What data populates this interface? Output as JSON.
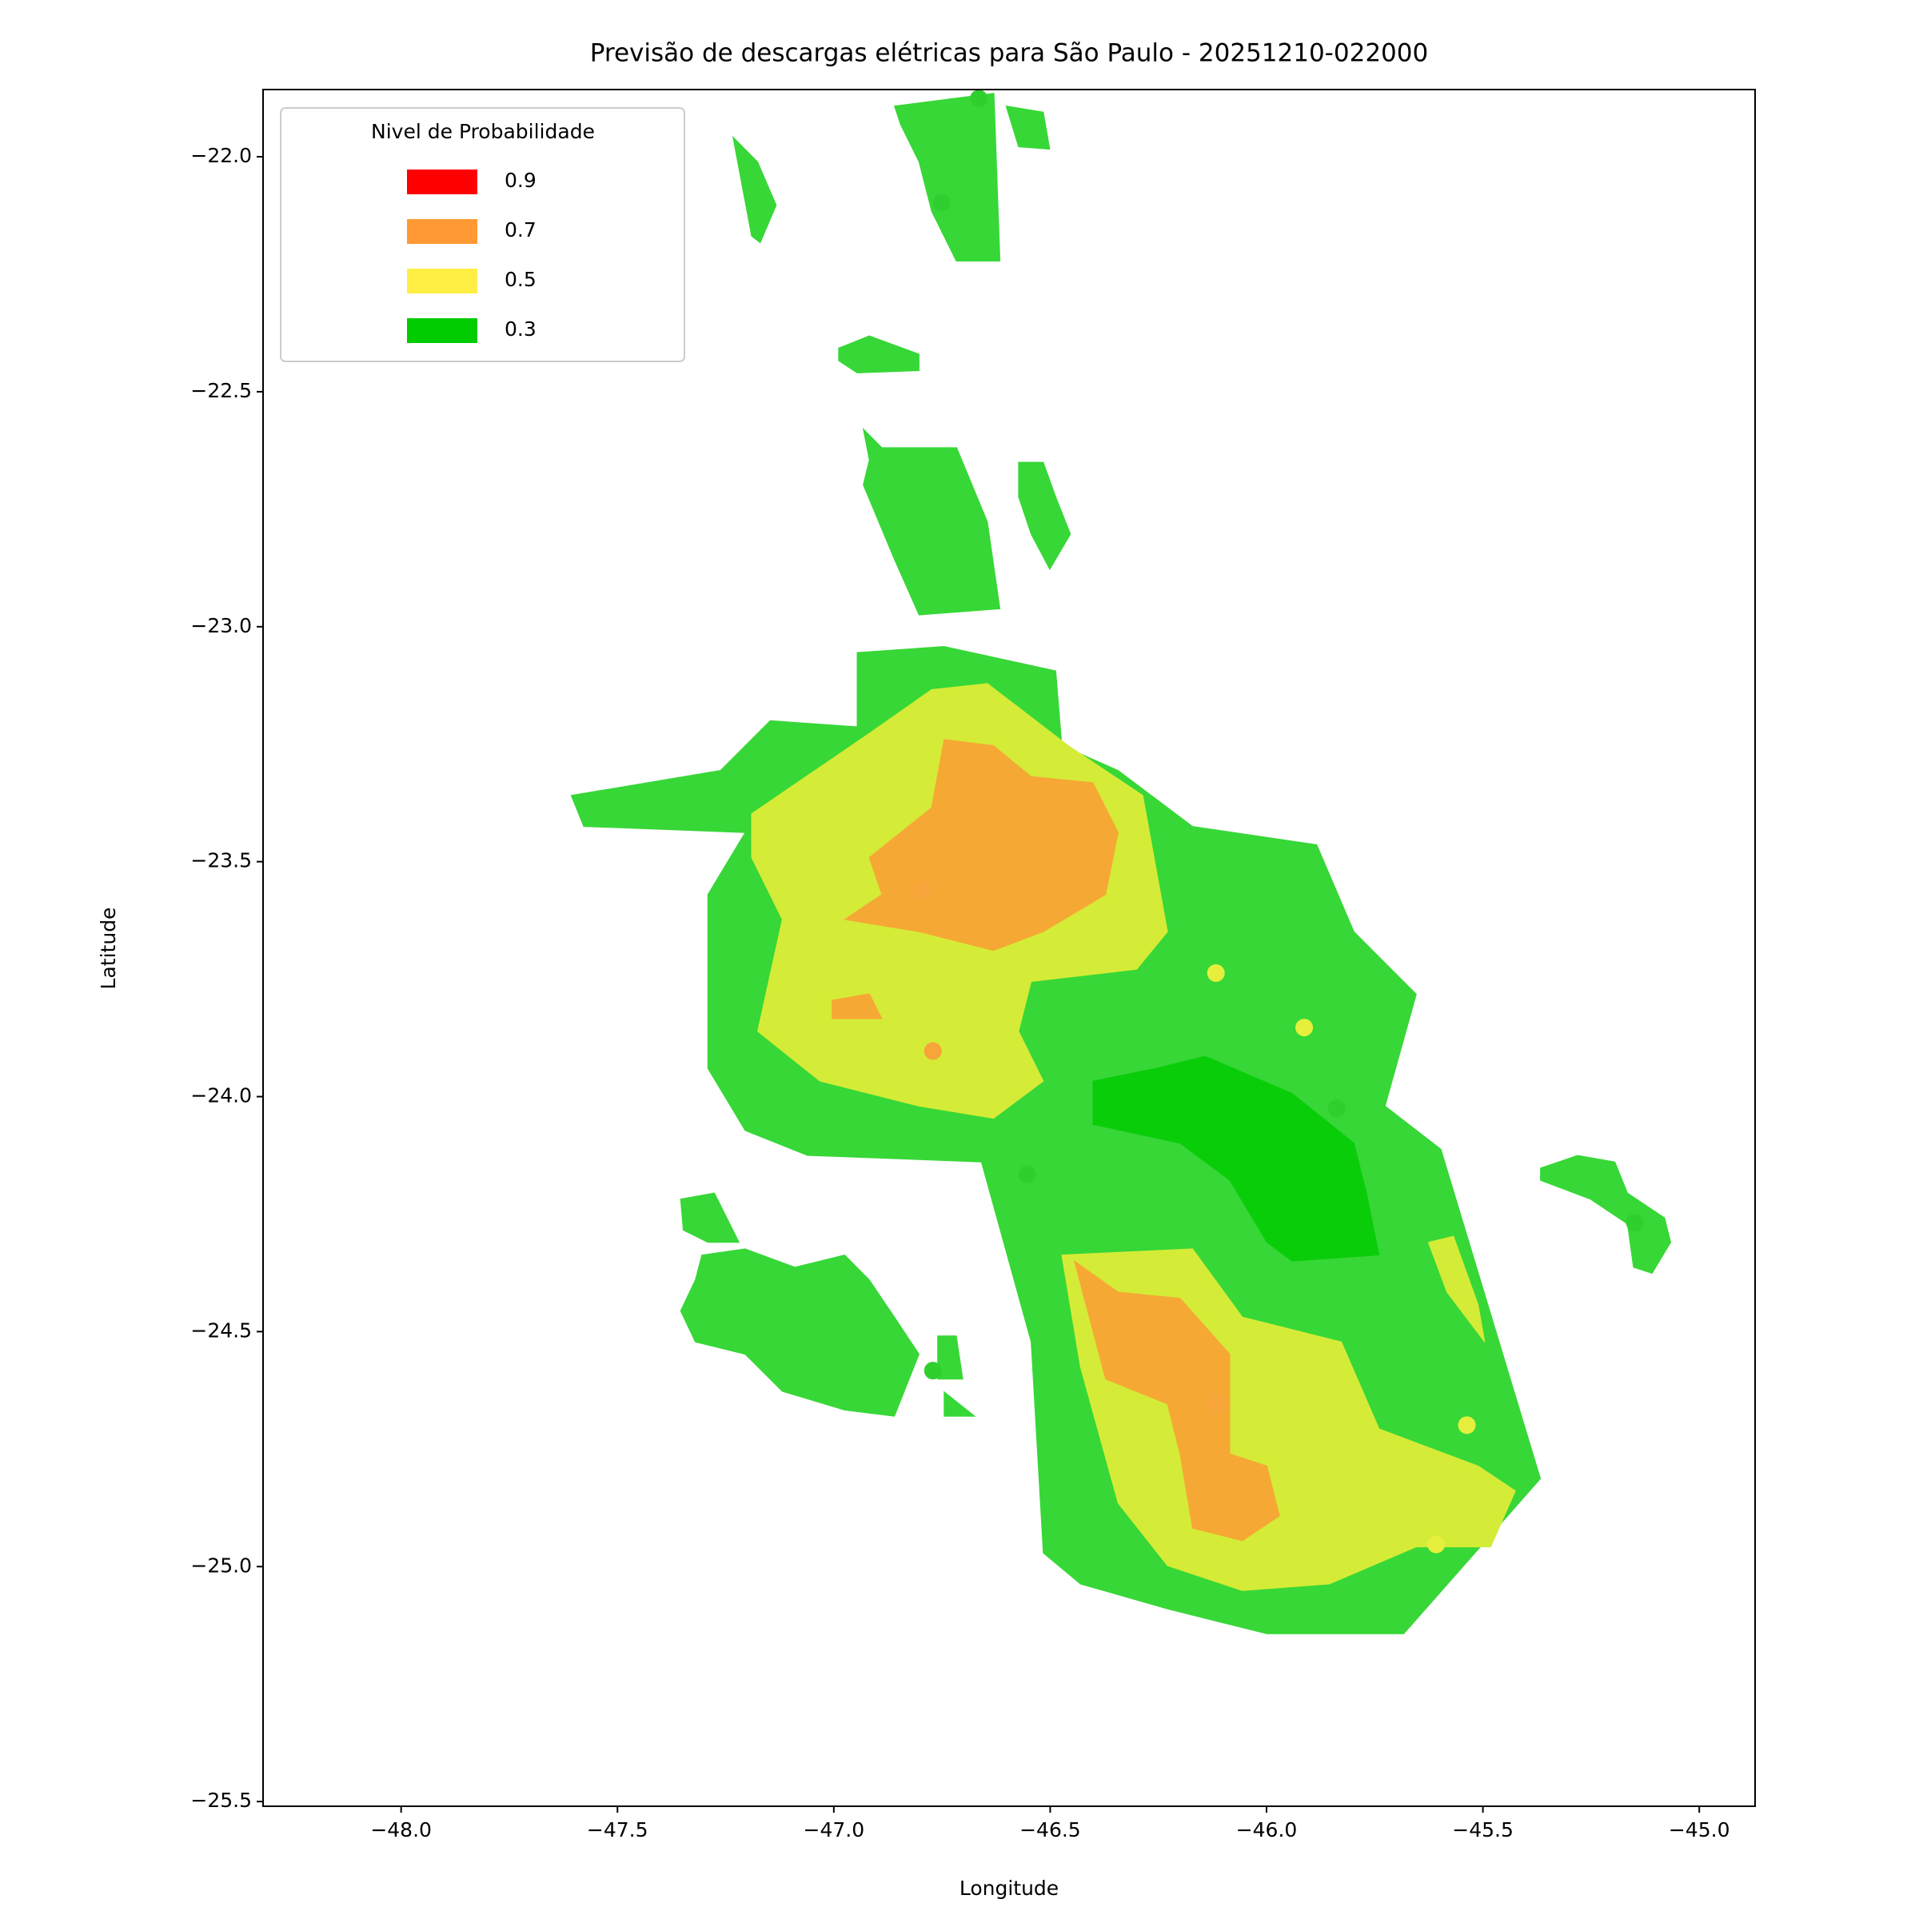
{
  "chart_data": {
    "type": "contour",
    "title": "Previsão de descargas elétricas para São Paulo - 20251210-022000",
    "xlabel": "Longitude",
    "ylabel": "Latitude",
    "xlim": [
      -48.319,
      -44.871
    ],
    "ylim": [
      -25.51,
      -21.857
    ],
    "xticks": [
      {
        "value": -48,
        "label": "−48.0"
      },
      {
        "value": -47.5,
        "label": "−47.5"
      },
      {
        "value": -47,
        "label": "−47.0"
      },
      {
        "value": -46.5,
        "label": "−46.5"
      },
      {
        "value": -46,
        "label": "−46.0"
      },
      {
        "value": -45.5,
        "label": "−45.5"
      },
      {
        "value": -45,
        "label": "−45.0"
      }
    ],
    "yticks": [
      {
        "value": -22,
        "label": "−22.0"
      },
      {
        "value": -22.5,
        "label": "−22.5"
      },
      {
        "value": -23,
        "label": "−23.0"
      },
      {
        "value": -23.5,
        "label": "−23.5"
      },
      {
        "value": -24,
        "label": "−24.0"
      },
      {
        "value": -24.5,
        "label": "−24.5"
      },
      {
        "value": -25,
        "label": "−25.0"
      },
      {
        "value": -25.5,
        "label": "−25.5"
      }
    ],
    "legend": {
      "title": "Nivel de Probabilidade",
      "loc": "upper left",
      "levels": [
        0.9,
        0.7,
        0.5,
        0.3
      ],
      "colors": [
        "#ff0000",
        "#ff9933",
        "#ffee44",
        "#00cc00"
      ]
    },
    "regions": [
      {
        "level": 0.3,
        "color": "#37d737",
        "points": [
          [
            -47.607,
            -23.359
          ],
          [
            -47.262,
            -23.306
          ],
          [
            -47.147,
            -23.2
          ],
          [
            -46.946,
            -23.213
          ],
          [
            -46.946,
            -23.055
          ],
          [
            -46.745,
            -23.042
          ],
          [
            -46.487,
            -23.094
          ],
          [
            -46.473,
            -23.253
          ],
          [
            -46.343,
            -23.306
          ],
          [
            -46.171,
            -23.425
          ],
          [
            -45.884,
            -23.464
          ],
          [
            -45.798,
            -23.649
          ],
          [
            -45.654,
            -23.782
          ],
          [
            -45.726,
            -24.02
          ],
          [
            -45.597,
            -24.112
          ],
          [
            -45.367,
            -24.813
          ],
          [
            -45.683,
            -25.143
          ],
          [
            -45.999,
            -25.143
          ],
          [
            -46.229,
            -25.09
          ],
          [
            -46.43,
            -25.037
          ],
          [
            -46.516,
            -24.971
          ],
          [
            -46.544,
            -24.522
          ],
          [
            -46.659,
            -24.139
          ],
          [
            -47.061,
            -24.125
          ],
          [
            -47.205,
            -24.072
          ],
          [
            -47.291,
            -23.94
          ],
          [
            -47.291,
            -23.57
          ],
          [
            -47.205,
            -23.438
          ],
          [
            -47.578,
            -23.425
          ]
        ]
      },
      {
        "level": 0.3,
        "color": "#37d737",
        "points": [
          [
            -46.86,
            -21.892
          ],
          [
            -46.63,
            -21.865
          ],
          [
            -46.616,
            -22.222
          ],
          [
            -46.717,
            -22.222
          ],
          [
            -46.774,
            -22.116
          ],
          [
            -46.803,
            -22.011
          ],
          [
            -46.846,
            -21.931
          ]
        ]
      },
      {
        "level": 0.3,
        "color": "#37d737",
        "points": [
          [
            -46.602,
            -21.892
          ],
          [
            -46.516,
            -21.905
          ],
          [
            -46.501,
            -21.984
          ],
          [
            -46.573,
            -21.979
          ]
        ]
      },
      {
        "level": 0.3,
        "color": "#37d737",
        "points": [
          [
            -47.233,
            -21.958
          ],
          [
            -47.176,
            -22.011
          ],
          [
            -47.133,
            -22.103
          ],
          [
            -47.17,
            -22.183
          ],
          [
            -47.19,
            -22.169
          ]
        ]
      },
      {
        "level": 0.3,
        "color": "#37d737",
        "points": [
          [
            -46.989,
            -22.407
          ],
          [
            -46.918,
            -22.381
          ],
          [
            -46.803,
            -22.42
          ],
          [
            -46.803,
            -22.455
          ],
          [
            -46.946,
            -22.46
          ],
          [
            -46.989,
            -22.434
          ]
        ]
      },
      {
        "level": 0.3,
        "color": "#37d737",
        "points": [
          [
            -46.932,
            -22.579
          ],
          [
            -46.889,
            -22.619
          ],
          [
            -46.716,
            -22.619
          ],
          [
            -46.645,
            -22.777
          ],
          [
            -46.616,
            -22.962
          ],
          [
            -46.803,
            -22.975
          ],
          [
            -46.86,
            -22.857
          ],
          [
            -46.932,
            -22.698
          ],
          [
            -46.918,
            -22.645
          ]
        ]
      },
      {
        "level": 0.3,
        "color": "#37d737",
        "points": [
          [
            -46.573,
            -22.65
          ],
          [
            -46.516,
            -22.65
          ],
          [
            -46.487,
            -22.724
          ],
          [
            -46.453,
            -22.803
          ],
          [
            -46.501,
            -22.878
          ],
          [
            -46.544,
            -22.803
          ],
          [
            -46.573,
            -22.724
          ]
        ]
      },
      {
        "level": 0.3,
        "color": "#37d737",
        "points": [
          [
            -47.354,
            -24.218
          ],
          [
            -47.276,
            -24.205
          ],
          [
            -47.219,
            -24.31
          ],
          [
            -47.291,
            -24.31
          ],
          [
            -47.348,
            -24.284
          ]
        ]
      },
      {
        "level": 0.3,
        "color": "#37d737",
        "points": [
          [
            -47.305,
            -24.337
          ],
          [
            -47.205,
            -24.324
          ],
          [
            -47.09,
            -24.363
          ],
          [
            -46.975,
            -24.337
          ],
          [
            -46.918,
            -24.39
          ],
          [
            -46.86,
            -24.469
          ],
          [
            -46.803,
            -24.548
          ],
          [
            -46.86,
            -24.68
          ],
          [
            -46.975,
            -24.667
          ],
          [
            -47.119,
            -24.627
          ],
          [
            -47.205,
            -24.548
          ],
          [
            -47.32,
            -24.522
          ],
          [
            -47.354,
            -24.456
          ],
          [
            -47.32,
            -24.39
          ]
        ]
      },
      {
        "level": 0.3,
        "color": "#37d737",
        "points": [
          [
            -46.76,
            -24.509
          ],
          [
            -46.717,
            -24.509
          ],
          [
            -46.702,
            -24.601
          ],
          [
            -46.76,
            -24.601
          ]
        ]
      },
      {
        "level": 0.3,
        "color": "#37d737",
        "points": [
          [
            -46.745,
            -24.628
          ],
          [
            -46.674,
            -24.68
          ],
          [
            -46.745,
            -24.68
          ]
        ]
      },
      {
        "level": 0.3,
        "color": "#37d737",
        "points": [
          [
            -45.367,
            -24.152
          ],
          [
            -45.281,
            -24.125
          ],
          [
            -45.195,
            -24.139
          ],
          [
            -45.166,
            -24.205
          ],
          [
            -45.08,
            -24.258
          ],
          [
            -45.066,
            -24.31
          ],
          [
            -45.109,
            -24.376
          ],
          [
            -45.152,
            -24.363
          ],
          [
            -45.166,
            -24.271
          ],
          [
            -45.252,
            -24.218
          ],
          [
            -45.367,
            -24.178
          ]
        ]
      },
      {
        "level": 0.5,
        "color": "#d4ec37",
        "points": [
          [
            -47.19,
            -23.398
          ],
          [
            -46.918,
            -23.227
          ],
          [
            -46.774,
            -23.134
          ],
          [
            -46.645,
            -23.121
          ],
          [
            -46.458,
            -23.253
          ],
          [
            -46.286,
            -23.359
          ],
          [
            -46.229,
            -23.649
          ],
          [
            -46.3,
            -23.729
          ],
          [
            -46.544,
            -23.755
          ],
          [
            -46.573,
            -23.861
          ],
          [
            -46.516,
            -23.967
          ],
          [
            -46.631,
            -24.046
          ],
          [
            -46.803,
            -24.02
          ],
          [
            -47.032,
            -23.967
          ],
          [
            -47.176,
            -23.861
          ],
          [
            -47.119,
            -23.623
          ],
          [
            -47.19,
            -23.491
          ]
        ]
      },
      {
        "level": 0.5,
        "color": "#d4ec37",
        "points": [
          [
            -46.473,
            -24.337
          ],
          [
            -46.171,
            -24.324
          ],
          [
            -46.056,
            -24.469
          ],
          [
            -45.827,
            -24.522
          ],
          [
            -45.74,
            -24.707
          ],
          [
            -45.511,
            -24.786
          ],
          [
            -45.425,
            -24.839
          ],
          [
            -45.482,
            -24.958
          ],
          [
            -45.654,
            -24.958
          ],
          [
            -45.855,
            -25.037
          ],
          [
            -46.056,
            -25.051
          ],
          [
            -46.229,
            -24.998
          ],
          [
            -46.343,
            -24.865
          ],
          [
            -46.43,
            -24.575
          ]
        ]
      },
      {
        "level": 0.5,
        "color": "#d4ec37",
        "points": [
          [
            -45.626,
            -24.31
          ],
          [
            -45.568,
            -24.297
          ],
          [
            -45.511,
            -24.443
          ],
          [
            -45.496,
            -24.522
          ],
          [
            -45.583,
            -24.416
          ]
        ]
      },
      {
        "level": 0.7,
        "color": "#f6a835",
        "points": [
          [
            -46.918,
            -23.491
          ],
          [
            -46.774,
            -23.385
          ],
          [
            -46.745,
            -23.24
          ],
          [
            -46.631,
            -23.253
          ],
          [
            -46.544,
            -23.319
          ],
          [
            -46.401,
            -23.332
          ],
          [
            -46.343,
            -23.438
          ],
          [
            -46.372,
            -23.57
          ],
          [
            -46.516,
            -23.649
          ],
          [
            -46.631,
            -23.689
          ],
          [
            -46.803,
            -23.649
          ],
          [
            -46.975,
            -23.623
          ],
          [
            -46.889,
            -23.57
          ]
        ]
      },
      {
        "level": 0.7,
        "color": "#f6a835",
        "points": [
          [
            -47.004,
            -23.795
          ],
          [
            -46.918,
            -23.781
          ],
          [
            -46.889,
            -23.834
          ],
          [
            -47.004,
            -23.834
          ]
        ]
      },
      {
        "level": 0.7,
        "color": "#f6a835",
        "points": [
          [
            -46.444,
            -24.35
          ],
          [
            -46.343,
            -24.416
          ],
          [
            -46.2,
            -24.429
          ],
          [
            -46.085,
            -24.548
          ],
          [
            -46.085,
            -24.76
          ],
          [
            -45.999,
            -24.786
          ],
          [
            -45.97,
            -24.892
          ],
          [
            -46.056,
            -24.945
          ],
          [
            -46.171,
            -24.918
          ],
          [
            -46.2,
            -24.76
          ],
          [
            -46.229,
            -24.654
          ],
          [
            -46.372,
            -24.601
          ]
        ]
      },
      {
        "level": 0.3,
        "color": "#0acd0a",
        "points": [
          [
            -46.401,
            -23.967
          ],
          [
            -46.257,
            -23.94
          ],
          [
            -46.142,
            -23.914
          ],
          [
            -45.941,
            -23.993
          ],
          [
            -45.798,
            -24.099
          ],
          [
            -45.769,
            -24.205
          ],
          [
            -45.74,
            -24.337
          ],
          [
            -45.941,
            -24.35
          ],
          [
            -45.999,
            -24.31
          ],
          [
            -46.085,
            -24.178
          ],
          [
            -46.2,
            -24.099
          ],
          [
            -46.401,
            -24.059
          ]
        ]
      }
    ],
    "points": {
      "x": [
        -46.665,
        -46.751,
        -46.794,
        -46.771,
        -46.117,
        -45.913,
        -45.838,
        -46.553,
        -45.149,
        -46.771,
        -46.117,
        -45.537,
        -45.608
      ],
      "y": [
        -21.876,
        -22.098,
        -23.562,
        -23.903,
        -23.737,
        -23.853,
        -24.025,
        -24.165,
        -24.268,
        -24.583,
        -24.654,
        -24.699,
        -24.953
      ],
      "colors": [
        "#2fcf2f",
        "#2fcf2f",
        "#f7a43a",
        "#f7a43a",
        "#e6ef3c",
        "#e6ef3c",
        "#2fcf2f",
        "#2fcf2f",
        "#2fcf2f",
        "#2fcf2f",
        "#f7a43a",
        "#e6ef3c",
        "#e6ef3c"
      ]
    }
  }
}
